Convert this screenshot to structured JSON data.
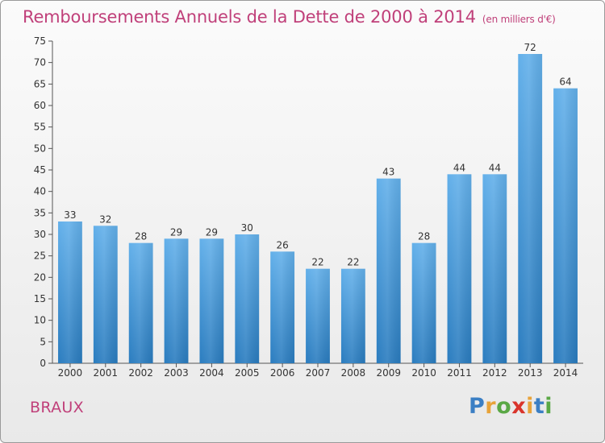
{
  "title": "Remboursements Annuels de la Dette de 2000 à 2014",
  "subtitle": "(en milliers d'€)",
  "commune": "BRAUX",
  "brand": {
    "letters": [
      "P",
      "r",
      "o",
      "x",
      "i",
      "t",
      "i"
    ],
    "colors": [
      "#3b7fc4",
      "#e8a33a",
      "#5aa845",
      "#d9342b",
      "#e8a33a",
      "#3b7fc4",
      "#5aa845"
    ]
  },
  "colors": {
    "title": "#c0407a",
    "bar_top": "#63b0ea",
    "bar_bottom": "#2a7cbf"
  },
  "chart_data": {
    "type": "bar",
    "categories": [
      "2000",
      "2001",
      "2002",
      "2003",
      "2004",
      "2005",
      "2006",
      "2007",
      "2008",
      "2009",
      "2010",
      "2011",
      "2012",
      "2013",
      "2014"
    ],
    "values": [
      33,
      32,
      28,
      29,
      29,
      30,
      26,
      22,
      22,
      43,
      28,
      44,
      44,
      72,
      64
    ],
    "ylim": [
      0,
      75
    ],
    "yticks": [
      0,
      5,
      10,
      15,
      20,
      25,
      30,
      35,
      40,
      45,
      50,
      55,
      60,
      65,
      70,
      75
    ],
    "grid": false,
    "data_labels": true
  }
}
